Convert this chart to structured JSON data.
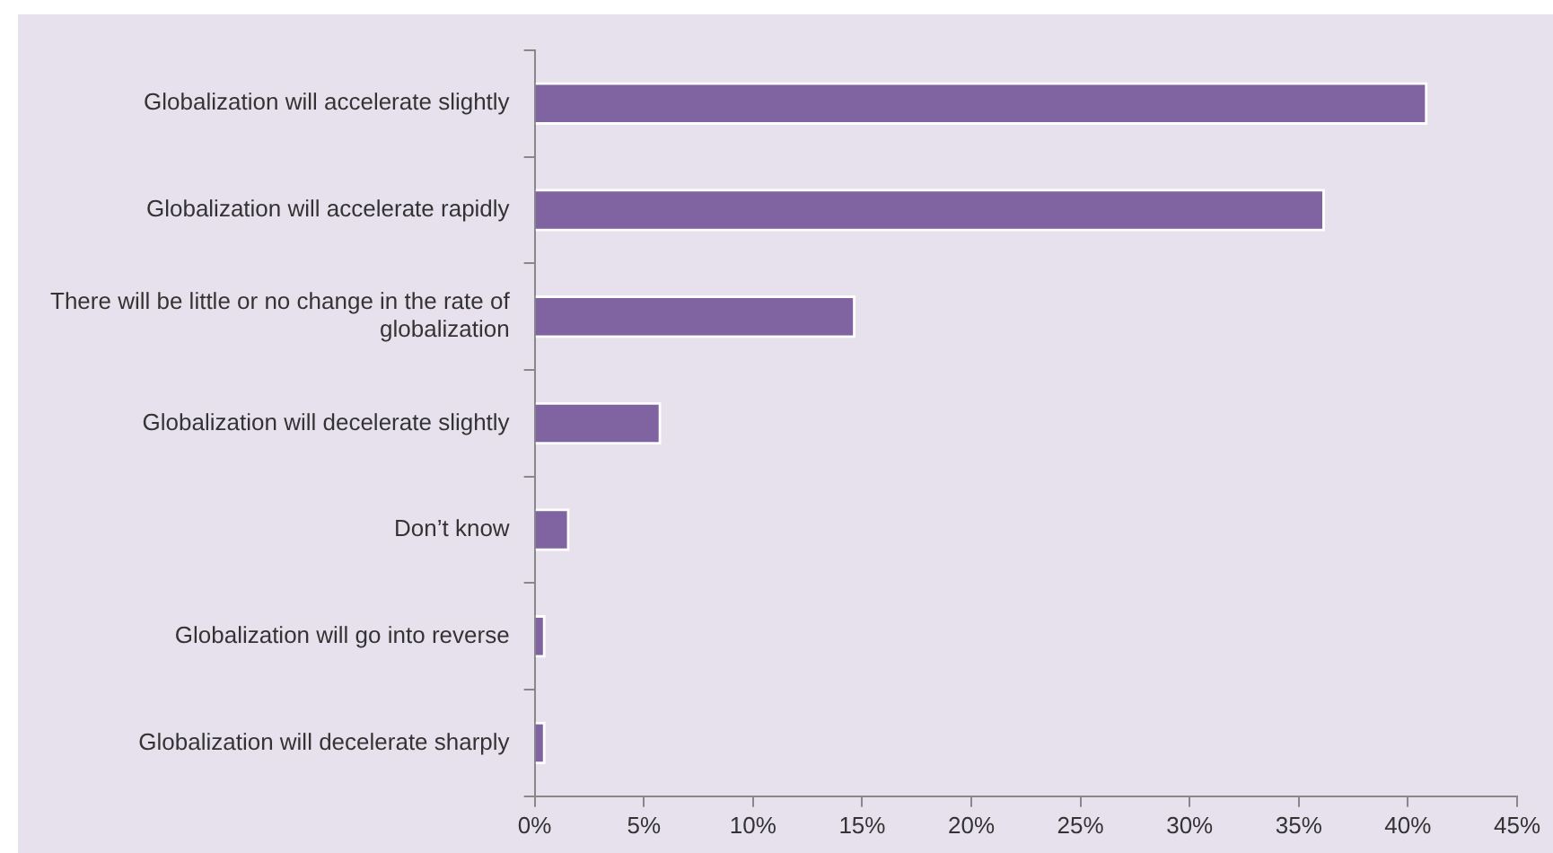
{
  "chart_data": {
    "type": "bar",
    "orientation": "horizontal",
    "categories": [
      "Globalization will accelerate slightly",
      "Globalization will accelerate rapidly",
      "There will be little or no change in the rate of globalization",
      "Globalization will decelerate slightly",
      "Don’t know",
      "Globalization will go into reverse",
      "Globalization will decelerate sharply"
    ],
    "values": [
      40.9,
      36.2,
      14.7,
      5.8,
      1.6,
      0.5,
      0.5
    ],
    "color": "#8064a2",
    "xlim": [
      0,
      45
    ],
    "xticks": [
      {
        "value": 0,
        "label": "0%"
      },
      {
        "value": 5,
        "label": "5%"
      },
      {
        "value": 10,
        "label": "10%"
      },
      {
        "value": 15,
        "label": "15%"
      },
      {
        "value": 20,
        "label": "20%"
      },
      {
        "value": 25,
        "label": "25%"
      },
      {
        "value": 30,
        "label": "30%"
      },
      {
        "value": 35,
        "label": "35%"
      },
      {
        "value": 40,
        "label": "40%"
      },
      {
        "value": 45,
        "label": "45%"
      }
    ],
    "grid": false,
    "legend": false
  }
}
